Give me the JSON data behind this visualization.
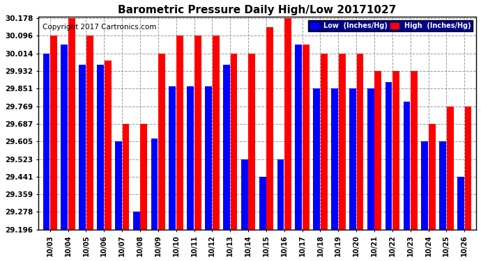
{
  "title": "Barometric Pressure Daily High/Low 20171027",
  "copyright": "Copyright 2017 Cartronics.com",
  "dates": [
    "10/03",
    "10/04",
    "10/05",
    "10/06",
    "10/07",
    "10/08",
    "10/09",
    "10/10",
    "10/11",
    "10/12",
    "10/13",
    "10/14",
    "10/15",
    "10/16",
    "10/17",
    "10/18",
    "10/19",
    "10/20",
    "10/21",
    "10/22",
    "10/23",
    "10/24",
    "10/25",
    "10/26"
  ],
  "low_values": [
    30.014,
    30.055,
    29.96,
    29.96,
    29.605,
    29.278,
    29.62,
    29.86,
    29.86,
    29.86,
    29.96,
    29.523,
    29.441,
    29.523,
    30.055,
    29.851,
    29.851,
    29.851,
    29.851,
    29.88,
    29.79,
    29.605,
    29.605,
    29.441
  ],
  "high_values": [
    30.096,
    30.178,
    30.096,
    29.98,
    29.687,
    29.687,
    30.014,
    30.096,
    30.096,
    30.096,
    30.014,
    30.014,
    30.136,
    30.178,
    30.055,
    30.014,
    30.014,
    30.014,
    29.932,
    29.932,
    29.932,
    29.687,
    29.769,
    29.769
  ],
  "low_color": "#0000ff",
  "high_color": "#ff0000",
  "bg_color": "#ffffff",
  "grid_color": "#999999",
  "ymin": 29.196,
  "ymax": 30.178,
  "yticks": [
    29.196,
    29.278,
    29.359,
    29.441,
    29.523,
    29.605,
    29.687,
    29.769,
    29.851,
    29.932,
    30.014,
    30.096,
    30.178
  ],
  "legend_low_label": "Low  (Inches/Hg)",
  "legend_high_label": "High  (Inches/Hg)",
  "title_fontsize": 11,
  "copyright_fontsize": 7.5
}
